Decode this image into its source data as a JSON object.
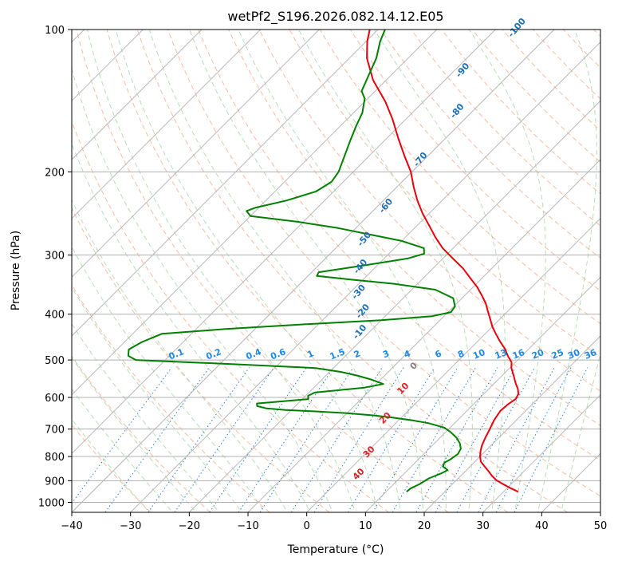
{
  "chart_data": {
    "type": "line",
    "subtype": "skew-t log-p diagram",
    "title": "wetPf2_S196.2026.082.14.12.E05",
    "xlabel": "Temperature (°C)",
    "ylabel": "Pressure (hPa)",
    "xlim": [
      -40,
      50
    ],
    "ylim": [
      1050,
      100
    ],
    "y_scale": "log",
    "grid": true,
    "x_ticks": [
      -40,
      -30,
      -20,
      -10,
      0,
      10,
      20,
      30,
      40,
      50
    ],
    "x_tick_labels": [
      "−40",
      "−30",
      "−20",
      "−10",
      "0",
      "10",
      "20",
      "30",
      "40",
      "50"
    ],
    "y_ticks": [
      100,
      200,
      300,
      400,
      500,
      600,
      700,
      800,
      900,
      1000
    ],
    "y_tick_labels": [
      "100",
      "200",
      "300",
      "400",
      "500",
      "600",
      "700",
      "800",
      "900",
      "1000"
    ],
    "series": [
      {
        "role": "temperature",
        "color": "#e8000b",
        "points": [
          [
            950,
            32.5
          ],
          [
            930,
            30.2
          ],
          [
            900,
            27.0
          ],
          [
            880,
            25.4
          ],
          [
            860,
            24.0
          ],
          [
            840,
            22.5
          ],
          [
            820,
            21.0
          ],
          [
            800,
            20.0
          ],
          [
            780,
            19.2
          ],
          [
            760,
            18.5
          ],
          [
            730,
            17.7
          ],
          [
            700,
            17.0
          ],
          [
            670,
            16.2
          ],
          [
            640,
            15.7
          ],
          [
            620,
            15.9
          ],
          [
            605,
            16.3
          ],
          [
            590,
            15.9
          ],
          [
            575,
            14.9
          ],
          [
            560,
            13.6
          ],
          [
            540,
            12.0
          ],
          [
            520,
            10.3
          ],
          [
            505,
            9.3
          ],
          [
            490,
            7.6
          ],
          [
            475,
            6.1
          ],
          [
            455,
            3.6
          ],
          [
            440,
            1.8
          ],
          [
            425,
            0.0
          ],
          [
            410,
            -1.6
          ],
          [
            395,
            -3.3
          ],
          [
            380,
            -5.0
          ],
          [
            365,
            -7.1
          ],
          [
            350,
            -9.4
          ],
          [
            335,
            -12.1
          ],
          [
            320,
            -14.9
          ],
          [
            305,
            -18.3
          ],
          [
            290,
            -21.8
          ],
          [
            275,
            -24.9
          ],
          [
            260,
            -27.9
          ],
          [
            245,
            -31.1
          ],
          [
            230,
            -34.2
          ],
          [
            215,
            -37.2
          ],
          [
            200,
            -40.2
          ],
          [
            185,
            -44.0
          ],
          [
            170,
            -48.0
          ],
          [
            155,
            -52.2
          ],
          [
            142,
            -56.5
          ],
          [
            128,
            -62.2
          ],
          [
            115,
            -67.0
          ],
          [
            106,
            -69.8
          ],
          [
            100,
            -71.4
          ]
        ]
      },
      {
        "role": "dewpoint",
        "color": "#008000",
        "points": [
          [
            950,
            13.5
          ],
          [
            935,
            13.6
          ],
          [
            915,
            14.4
          ],
          [
            890,
            15.0
          ],
          [
            870,
            16.2
          ],
          [
            855,
            16.8
          ],
          [
            840,
            15.4
          ],
          [
            825,
            15.0
          ],
          [
            810,
            15.5
          ],
          [
            790,
            15.8
          ],
          [
            770,
            15.4
          ],
          [
            750,
            14.3
          ],
          [
            730,
            12.8
          ],
          [
            710,
            10.8
          ],
          [
            695,
            9.0
          ],
          [
            680,
            5.5
          ],
          [
            670,
            2.0
          ],
          [
            662,
            -1.5
          ],
          [
            655,
            -5.0
          ],
          [
            648,
            -10.0
          ],
          [
            642,
            -16.0
          ],
          [
            638,
            -21.0
          ],
          [
            633,
            -24.5
          ],
          [
            626,
            -26.5
          ],
          [
            618,
            -27.0
          ],
          [
            605,
            -19.0
          ],
          [
            595,
            -19.6
          ],
          [
            586,
            -19.0
          ],
          [
            572,
            -11.4
          ],
          [
            562,
            -8.8
          ],
          [
            550,
            -11.6
          ],
          [
            540,
            -14.5
          ],
          [
            530,
            -18.0
          ],
          [
            520,
            -23.0
          ],
          [
            510,
            -38.0
          ],
          [
            500,
            -55.0
          ],
          [
            490,
            -57.0
          ],
          [
            475,
            -58.0
          ],
          [
            458,
            -57.0
          ],
          [
            440,
            -55.0
          ],
          [
            430,
            -45.0
          ],
          [
            420,
            -32.0
          ],
          [
            412,
            -20.0
          ],
          [
            404,
            -12.0
          ],
          [
            396,
            -9.5
          ],
          [
            385,
            -9.8
          ],
          [
            370,
            -11.5
          ],
          [
            355,
            -16.0
          ],
          [
            345,
            -24.0
          ],
          [
            338,
            -32.0
          ],
          [
            332,
            -38.5
          ],
          [
            326,
            -38.8
          ],
          [
            315,
            -32.0
          ],
          [
            305,
            -26.0
          ],
          [
            298,
            -24.0
          ],
          [
            290,
            -25.0
          ],
          [
            280,
            -30.0
          ],
          [
            272,
            -36.0
          ],
          [
            263,
            -43.0
          ],
          [
            255,
            -51.0
          ],
          [
            248,
            -60.0
          ],
          [
            242,
            -61.5
          ],
          [
            238,
            -60.5
          ],
          [
            230,
            -56.5
          ],
          [
            220,
            -53.0
          ],
          [
            210,
            -52.0
          ],
          [
            200,
            -52.5
          ],
          [
            185,
            -54.2
          ],
          [
            172,
            -55.8
          ],
          [
            160,
            -57.3
          ],
          [
            150,
            -58.5
          ],
          [
            140,
            -60.5
          ],
          [
            135,
            -62.3
          ],
          [
            125,
            -63.8
          ],
          [
            115,
            -65.4
          ],
          [
            106,
            -67.6
          ],
          [
            100,
            -68.8
          ]
        ]
      }
    ],
    "mixing_ratio_labels": [
      "0.1",
      "0.2",
      "0.4",
      "0.6",
      "1",
      "1.5",
      "2",
      "3",
      "4",
      "6",
      "8",
      "10",
      "13",
      "16",
      "20",
      "25",
      "30",
      "36"
    ],
    "mixing_ratio_values": [
      0.1,
      0.2,
      0.4,
      0.6,
      1,
      1.5,
      2,
      3,
      4,
      6,
      8,
      10,
      13,
      16,
      20,
      25,
      30,
      36
    ],
    "moist_adiabat_labels": [
      "-100",
      "-90",
      "-80",
      "-70",
      "-60",
      "-50",
      "-40",
      "-30",
      "-20",
      "-10"
    ],
    "dry_adiabat_labels": [
      "0",
      "10",
      "20",
      "30",
      "40"
    ],
    "colors": {
      "grid": "#b0b0b0",
      "isotherm": "#b0b0b0",
      "dry_adiabat": "#f4a582",
      "moist_adiabat": "#a6d4a6",
      "mixing_ratio": "#2a7fd4",
      "mixing_label": "#1e88e5",
      "moist_label": "#1f6fb5",
      "dry_label": "#d62728",
      "zero_label": "#808080",
      "frost_line": "#d9bc96"
    }
  }
}
